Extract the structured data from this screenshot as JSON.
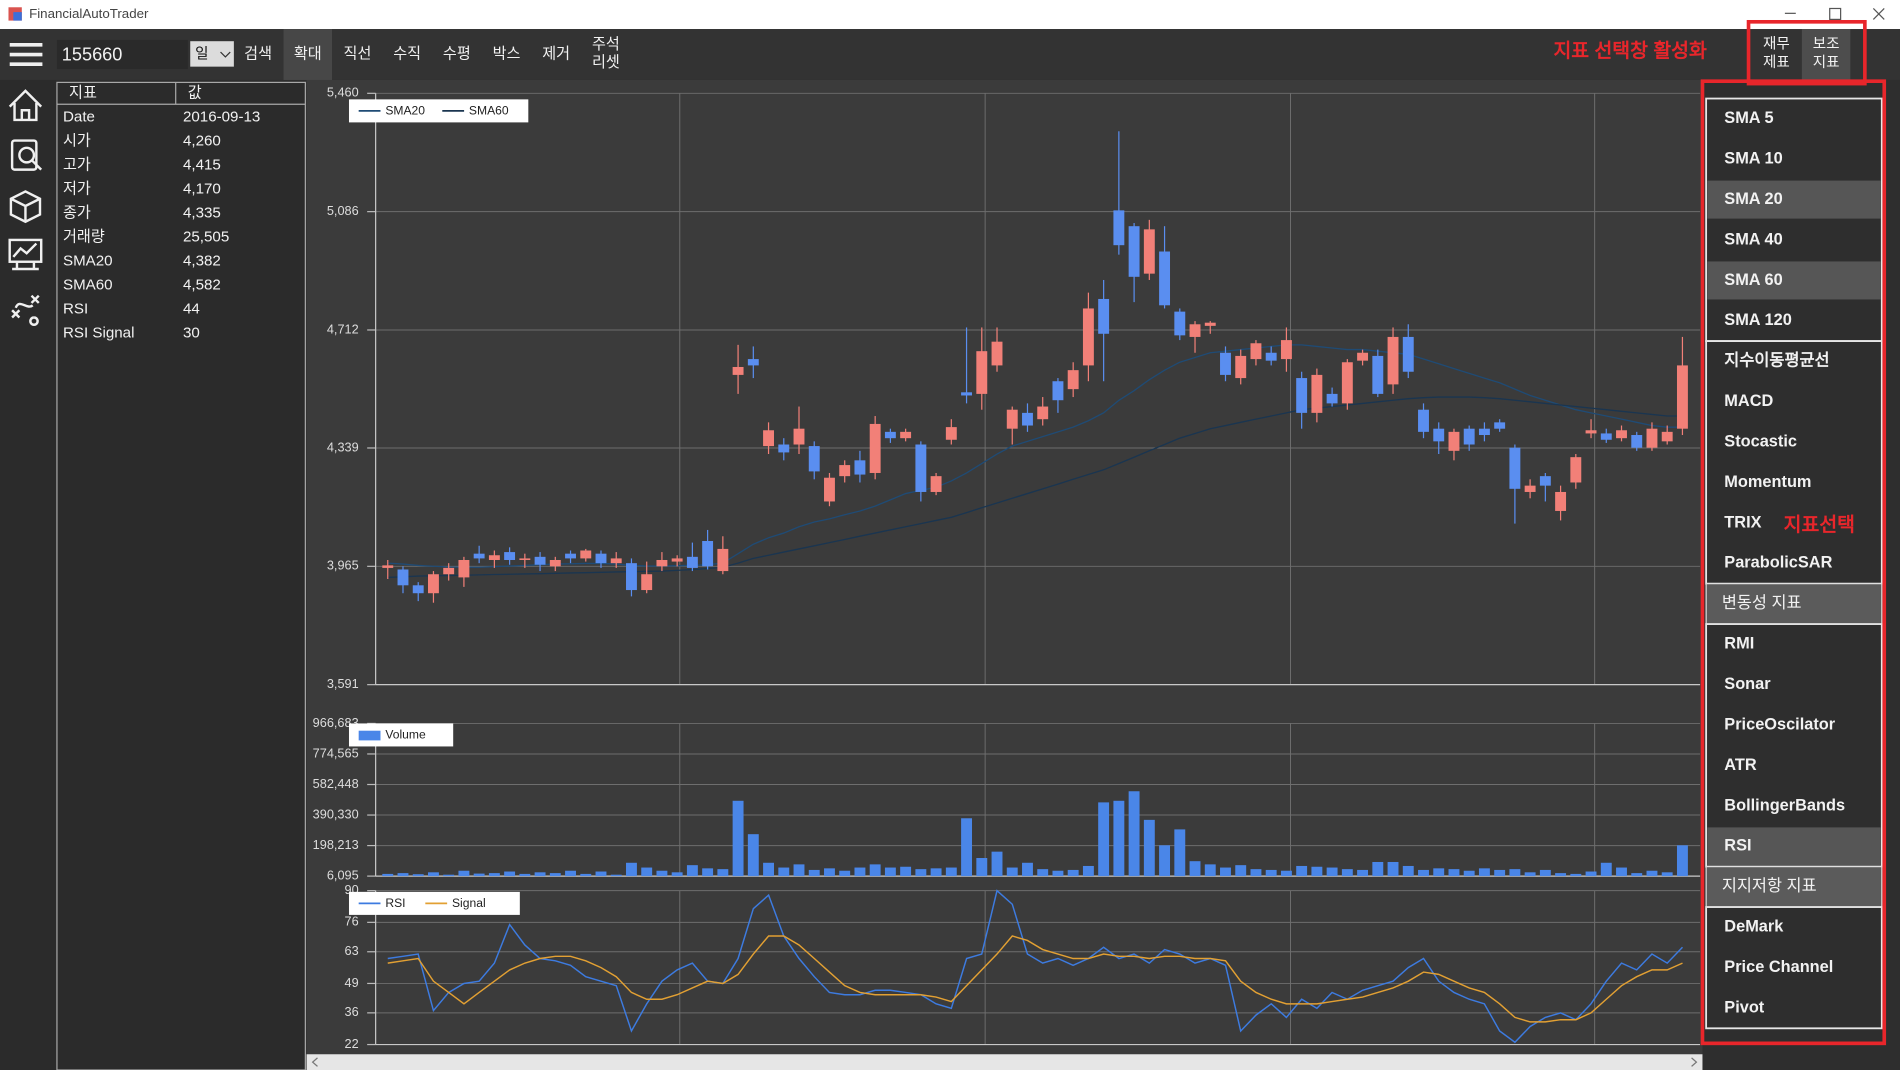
{
  "window": {
    "title": "FinancialAutoTrader"
  },
  "toolbar": {
    "symbol": "155660",
    "period": "일",
    "buttons": [
      {
        "label": "검색"
      },
      {
        "label": "확대",
        "active": true
      },
      {
        "label": "직선"
      },
      {
        "label": "수직"
      },
      {
        "label": "수평"
      },
      {
        "label": "박스"
      },
      {
        "label": "제거"
      }
    ],
    "reset": [
      "주석",
      "리셋"
    ],
    "panels": [
      {
        "lines": [
          "재무",
          "제표"
        ]
      },
      {
        "lines": [
          "보조",
          "지표"
        ],
        "active": true
      }
    ]
  },
  "annotations": {
    "activate": "지표 선택창 활성화",
    "select": "지표선택"
  },
  "info_table": {
    "header": [
      "지표",
      "값"
    ],
    "rows": [
      [
        "Date",
        "2016-09-13"
      ],
      [
        "시가",
        "4,260"
      ],
      [
        "고가",
        "4,415"
      ],
      [
        "저가",
        "4,170"
      ],
      [
        "종가",
        "4,335"
      ],
      [
        "거래량",
        "25,505"
      ],
      [
        "SMA20",
        "4,382"
      ],
      [
        "SMA60",
        "4,582"
      ],
      [
        "RSI",
        "44"
      ],
      [
        "RSI Signal",
        "30"
      ]
    ]
  },
  "menu": {
    "groups": [
      {
        "items": [
          {
            "label": "SMA 5"
          },
          {
            "label": "SMA 10"
          },
          {
            "label": "SMA 20",
            "selected": true
          },
          {
            "label": "SMA 40"
          },
          {
            "label": "SMA 60",
            "selected": true
          },
          {
            "label": "SMA 120"
          }
        ]
      },
      {
        "items": [
          {
            "label": "지수이동평균선"
          },
          {
            "label": "MACD"
          },
          {
            "label": "Stocastic"
          },
          {
            "label": "Momentum"
          },
          {
            "label": "TRIX"
          },
          {
            "label": "ParabolicSAR"
          }
        ]
      },
      {
        "title": "변동성 지표",
        "items": [
          {
            "label": "RMI"
          },
          {
            "label": "Sonar"
          },
          {
            "label": "PriceOscilator"
          },
          {
            "label": "ATR"
          },
          {
            "label": "BollingerBands"
          },
          {
            "label": "RSI",
            "selected": true
          }
        ]
      },
      {
        "title": "지지저항 지표",
        "items": [
          {
            "label": "DeMark"
          },
          {
            "label": "Price Channel"
          },
          {
            "label": "Pivot"
          }
        ]
      }
    ]
  },
  "chart_data": [
    {
      "type": "candlestick",
      "up_color": "#f28078",
      "down_color": "#5a8ef0",
      "grid": true,
      "ylim": [
        3591,
        5460
      ],
      "yticks": [
        {
          "value": 3591,
          "label": "3,591"
        },
        {
          "value": 3965,
          "label": "3,965"
        },
        {
          "value": 4339,
          "label": "4,339"
        },
        {
          "value": 4712,
          "label": "4,712"
        },
        {
          "value": 5086,
          "label": "5,086"
        },
        {
          "value": 5460,
          "label": "5,460"
        }
      ],
      "open": [
        3960,
        3955,
        3905,
        3880,
        3940,
        3930,
        4005,
        3985,
        4010,
        3985,
        3995,
        3965,
        4005,
        3990,
        4005,
        3975,
        3975,
        3890,
        3965,
        3980,
        3995,
        4045,
        3950,
        4570,
        4620,
        4345,
        4350,
        4350,
        4345,
        4170,
        4250,
        4300,
        4260,
        4390,
        4370,
        4350,
        4200,
        4365,
        4515,
        4510,
        4600,
        4400,
        4450,
        4430,
        4550,
        4525,
        4600,
        4810,
        5090,
        5040,
        4890,
        4960,
        4770,
        4690,
        4725,
        4640,
        4560,
        4620,
        4640,
        4620,
        4560,
        4450,
        4510,
        4480,
        4615,
        4630,
        4540,
        4690,
        4460,
        4400,
        4330,
        4400,
        4400,
        4420,
        4340,
        4200,
        4250,
        4140,
        4230,
        4385,
        4385,
        4370,
        4380,
        4340,
        4360,
        4400
      ],
      "high": [
        3985,
        3965,
        3915,
        3950,
        3975,
        3995,
        4030,
        4015,
        4025,
        4005,
        4010,
        3995,
        4015,
        4020,
        4015,
        4010,
        3990,
        3980,
        4010,
        4000,
        4040,
        4080,
        4060,
        4665,
        4660,
        4420,
        4370,
        4470,
        4360,
        4260,
        4300,
        4330,
        4440,
        4400,
        4400,
        4360,
        4260,
        4430,
        4720,
        4720,
        4720,
        4470,
        4480,
        4500,
        4560,
        4610,
        4830,
        4870,
        5340,
        5050,
        5060,
        5040,
        4780,
        4740,
        4740,
        4660,
        4650,
        4680,
        4660,
        4720,
        4580,
        4590,
        4530,
        4620,
        4650,
        4650,
        4720,
        4730,
        4480,
        4420,
        4400,
        4410,
        4420,
        4430,
        4350,
        4240,
        4260,
        4220,
        4320,
        4430,
        4400,
        4410,
        4390,
        4420,
        4410,
        4690
      ],
      "low": [
        3925,
        3880,
        3855,
        3850,
        3920,
        3900,
        3975,
        3960,
        3970,
        3960,
        3950,
        3950,
        3975,
        3980,
        3960,
        3960,
        3870,
        3880,
        3950,
        3965,
        3950,
        3955,
        3940,
        4510,
        4560,
        4320,
        4300,
        4320,
        4240,
        4155,
        4230,
        4230,
        4240,
        4355,
        4360,
        4170,
        4190,
        4350,
        4480,
        4460,
        4580,
        4350,
        4390,
        4410,
        4450,
        4500,
        4550,
        4550,
        4950,
        4800,
        4870,
        4780,
        4680,
        4640,
        4700,
        4550,
        4540,
        4600,
        4600,
        4580,
        4400,
        4420,
        4470,
        4460,
        4600,
        4500,
        4510,
        4560,
        4370,
        4320,
        4300,
        4330,
        4360,
        4390,
        4100,
        4180,
        4170,
        4110,
        4210,
        4370,
        4355,
        4360,
        4330,
        4330,
        4350,
        4380
      ],
      "close": [
        3968,
        3905,
        3880,
        3940,
        3960,
        3985,
        3990,
        4000,
        3985,
        3990,
        3970,
        3985,
        3990,
        4015,
        3975,
        3990,
        3890,
        3940,
        3985,
        3990,
        3960,
        3965,
        4020,
        4595,
        4600,
        4395,
        4325,
        4400,
        4265,
        4245,
        4285,
        4255,
        4415,
        4370,
        4390,
        4200,
        4250,
        4405,
        4505,
        4645,
        4675,
        4460,
        4410,
        4470,
        4490,
        4585,
        4780,
        4700,
        4980,
        4880,
        5030,
        4790,
        4695,
        4730,
        4735,
        4570,
        4630,
        4670,
        4615,
        4680,
        4450,
        4570,
        4480,
        4610,
        4640,
        4510,
        4690,
        4580,
        4390,
        4360,
        4390,
        4350,
        4380,
        4400,
        4210,
        4220,
        4220,
        4200,
        4310,
        4395,
        4365,
        4395,
        4340,
        4400,
        4390,
        4600
      ],
      "series": [
        {
          "name": "SMA20",
          "color": "#1f4b75",
          "values": [
            3975,
            3972,
            3968,
            3965,
            3963,
            3962,
            3962,
            3964,
            3966,
            3968,
            3970,
            3972,
            3973,
            3974,
            3974,
            3972,
            3968,
            3966,
            3966,
            3967,
            3968,
            3970,
            3975,
            4005,
            4035,
            4055,
            4070,
            4090,
            4105,
            4115,
            4128,
            4140,
            4155,
            4175,
            4195,
            4205,
            4215,
            4235,
            4260,
            4290,
            4320,
            4345,
            4360,
            4375,
            4390,
            4405,
            4425,
            4450,
            4490,
            4520,
            4555,
            4585,
            4610,
            4625,
            4640,
            4645,
            4650,
            4655,
            4660,
            4665,
            4665,
            4660,
            4655,
            4650,
            4650,
            4645,
            4640,
            4635,
            4620,
            4605,
            4590,
            4575,
            4560,
            4545,
            4525,
            4505,
            4490,
            4475,
            4460,
            4450,
            4440,
            4430,
            4420,
            4410,
            4405,
            4405
          ]
        },
        {
          "name": "SMA60",
          "color": "#1a3550",
          "values": [
            3930,
            3932,
            3934,
            3935,
            3936,
            3937,
            3938,
            3939,
            3940,
            3941,
            3942,
            3943,
            3944,
            3945,
            3946,
            3947,
            3948,
            3949,
            3950,
            3952,
            3955,
            3958,
            3962,
            3975,
            3990,
            4000,
            4010,
            4020,
            4030,
            4040,
            4050,
            4060,
            4070,
            4080,
            4090,
            4100,
            4110,
            4120,
            4135,
            4150,
            4165,
            4180,
            4195,
            4210,
            4225,
            4240,
            4255,
            4270,
            4290,
            4310,
            4330,
            4350,
            4370,
            4385,
            4400,
            4410,
            4420,
            4430,
            4440,
            4450,
            4460,
            4465,
            4470,
            4475,
            4480,
            4485,
            4490,
            4495,
            4498,
            4500,
            4500,
            4500,
            4498,
            4495,
            4490,
            4485,
            4480,
            4475,
            4470,
            4465,
            4460,
            4455,
            4450,
            4445,
            4440,
            4440
          ]
        }
      ]
    },
    {
      "type": "bar",
      "grid": true,
      "ylim": [
        6095,
        966683
      ],
      "yticks": [
        {
          "value": 6095,
          "label": "6,095"
        },
        {
          "value": 198213,
          "label": "198,213"
        },
        {
          "value": 390330,
          "label": "390,330"
        },
        {
          "value": 582448,
          "label": "582,448"
        },
        {
          "value": 774565,
          "label": "774,565"
        },
        {
          "value": 966683,
          "label": "966,683"
        }
      ],
      "series": [
        {
          "name": "Volume",
          "color": "#4a86e8",
          "values": [
            20000,
            25000,
            18000,
            30000,
            15000,
            40000,
            22000,
            25000,
            35000,
            20000,
            30000,
            25000,
            40000,
            20000,
            35000,
            15000,
            90000,
            60000,
            40000,
            30000,
            75000,
            55000,
            50000,
            480000,
            270000,
            90000,
            60000,
            80000,
            45000,
            55000,
            40000,
            60000,
            80000,
            60000,
            65000,
            50000,
            55000,
            60000,
            370000,
            120000,
            160000,
            60000,
            90000,
            50000,
            40000,
            45000,
            70000,
            470000,
            480000,
            540000,
            360000,
            200000,
            300000,
            100000,
            80000,
            60000,
            75000,
            50000,
            45000,
            40000,
            70000,
            65000,
            60000,
            50000,
            45000,
            95000,
            95000,
            70000,
            45000,
            55000,
            50000,
            40000,
            55000,
            45000,
            50000,
            30000,
            45000,
            25000,
            20000,
            35000,
            90000,
            60000,
            25000,
            40000,
            30000,
            200000
          ]
        }
      ]
    },
    {
      "type": "line",
      "grid": true,
      "ylim": [
        22,
        90
      ],
      "yticks": [
        22,
        36,
        49,
        63,
        76,
        90
      ],
      "series": [
        {
          "name": "RSI",
          "color": "#3d7be0",
          "values": [
            60,
            61,
            62,
            37,
            45,
            49,
            50,
            58,
            75,
            66,
            60,
            59,
            57,
            52,
            50,
            48,
            28,
            40,
            50,
            55,
            58,
            50,
            49,
            60,
            82,
            88,
            70,
            60,
            52,
            45,
            44,
            44,
            46,
            46,
            45,
            44,
            40,
            38,
            60,
            62,
            90,
            84,
            62,
            58,
            60,
            57,
            60,
            65,
            60,
            62,
            58,
            64,
            62,
            58,
            60,
            57,
            28,
            35,
            40,
            34,
            42,
            38,
            45,
            42,
            46,
            48,
            50,
            56,
            60,
            50,
            45,
            42,
            40,
            28,
            23,
            30,
            34,
            36,
            33,
            40,
            50,
            58,
            55,
            62,
            58,
            65
          ]
        },
        {
          "name": "Signal",
          "color": "#e2a033",
          "values": [
            58,
            59,
            60,
            50,
            45,
            40,
            45,
            50,
            55,
            58,
            60,
            61,
            61,
            59,
            56,
            52,
            45,
            42,
            42,
            44,
            47,
            50,
            49,
            53,
            62,
            70,
            70,
            66,
            60,
            54,
            48,
            45,
            44,
            44,
            44,
            44,
            43,
            41,
            48,
            55,
            62,
            70,
            68,
            64,
            62,
            60,
            60,
            62,
            61,
            61,
            60,
            61,
            61,
            60,
            60,
            59,
            50,
            45,
            42,
            40,
            40,
            40,
            41,
            42,
            43,
            45,
            47,
            50,
            54,
            53,
            50,
            47,
            45,
            40,
            34,
            32,
            32,
            33,
            33,
            36,
            42,
            48,
            52,
            55,
            55,
            58
          ]
        }
      ]
    }
  ]
}
